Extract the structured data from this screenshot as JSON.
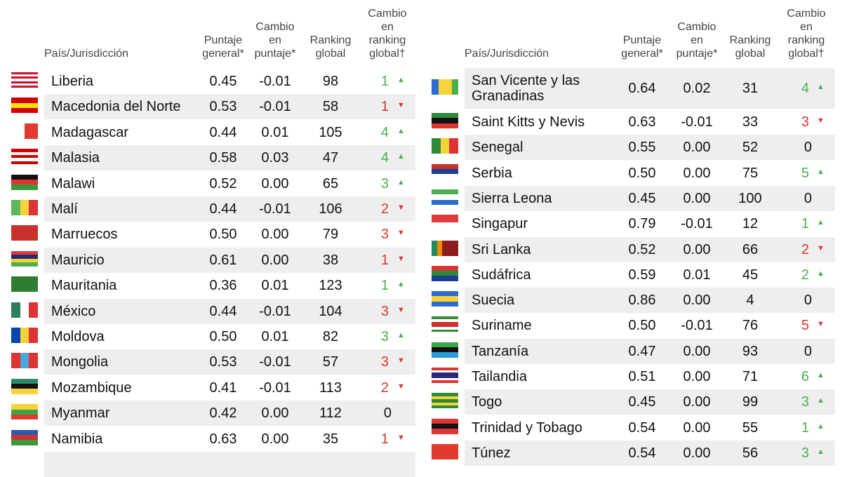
{
  "headers": {
    "country": "País/Jurisdicción",
    "score": [
      "Puntaje",
      "general*"
    ],
    "score_change": [
      "Cambio",
      "en",
      "puntaje*"
    ],
    "rank": [
      "Ranking",
      "global"
    ],
    "rank_change": [
      "Cambio",
      "en",
      "ranking",
      "global†"
    ]
  },
  "colors": {
    "up": "#4caf50",
    "down": "#d63a2f",
    "stripe": "#eeeeee"
  },
  "left_rows": [
    {
      "country": "Liberia",
      "flag": "flag-liberia-icon",
      "score": "0.45",
      "score_change": "-0.01",
      "rank": "98",
      "rank_change": "1",
      "dir": "up"
    },
    {
      "country": "Macedonia del Norte",
      "flag": "flag-north-macedonia-icon",
      "score": "0.53",
      "score_change": "-0.01",
      "rank": "58",
      "rank_change": "1",
      "dir": "down"
    },
    {
      "country": "Madagascar",
      "flag": "flag-madagascar-icon",
      "score": "0.44",
      "score_change": "0.01",
      "rank": "105",
      "rank_change": "4",
      "dir": "up"
    },
    {
      "country": "Malasia",
      "flag": "flag-malaysia-icon",
      "score": "0.58",
      "score_change": "0.03",
      "rank": "47",
      "rank_change": "4",
      "dir": "up"
    },
    {
      "country": "Malawi",
      "flag": "flag-malawi-icon",
      "score": "0.52",
      "score_change": "0.00",
      "rank": "65",
      "rank_change": "3",
      "dir": "up"
    },
    {
      "country": "Malí",
      "flag": "flag-mali-icon",
      "score": "0.44",
      "score_change": "-0.01",
      "rank": "106",
      "rank_change": "2",
      "dir": "down"
    },
    {
      "country": "Marruecos",
      "flag": "flag-morocco-icon",
      "score": "0.50",
      "score_change": "0.00",
      "rank": "79",
      "rank_change": "3",
      "dir": "down"
    },
    {
      "country": "Mauricio",
      "flag": "flag-mauritius-icon",
      "score": "0.61",
      "score_change": "0.00",
      "rank": "38",
      "rank_change": "1",
      "dir": "down"
    },
    {
      "country": "Mauritania",
      "flag": "flag-mauritania-icon",
      "score": "0.36",
      "score_change": "0.01",
      "rank": "123",
      "rank_change": "1",
      "dir": "up"
    },
    {
      "country": "México",
      "flag": "flag-mexico-icon",
      "score": "0.44",
      "score_change": "-0.01",
      "rank": "104",
      "rank_change": "3",
      "dir": "down"
    },
    {
      "country": "Moldova",
      "flag": "flag-moldova-icon",
      "score": "0.50",
      "score_change": "0.01",
      "rank": "82",
      "rank_change": "3",
      "dir": "up"
    },
    {
      "country": "Mongolia",
      "flag": "flag-mongolia-icon",
      "score": "0.53",
      "score_change": "-0.01",
      "rank": "57",
      "rank_change": "3",
      "dir": "down"
    },
    {
      "country": "Mozambique",
      "flag": "flag-mozambique-icon",
      "score": "0.41",
      "score_change": "-0.01",
      "rank": "113",
      "rank_change": "2",
      "dir": "down"
    },
    {
      "country": "Myanmar",
      "flag": "flag-myanmar-icon",
      "score": "0.42",
      "score_change": "0.00",
      "rank": "112",
      "rank_change": "0",
      "dir": "none"
    },
    {
      "country": "Namibia",
      "flag": "flag-namibia-icon",
      "score": "0.63",
      "score_change": "0.00",
      "rank": "35",
      "rank_change": "1",
      "dir": "down"
    }
  ],
  "right_rows": [
    {
      "country": "San Vicente y las Granadinas",
      "flag": "flag-saint-vincent-icon",
      "score": "0.64",
      "score_change": "0.02",
      "rank": "31",
      "rank_change": "4",
      "dir": "up"
    },
    {
      "country": "Saint Kitts y Nevis",
      "flag": "flag-saint-kitts-icon",
      "score": "0.63",
      "score_change": "-0.01",
      "rank": "33",
      "rank_change": "3",
      "dir": "down"
    },
    {
      "country": "Senegal",
      "flag": "flag-senegal-icon",
      "score": "0.55",
      "score_change": "0.00",
      "rank": "52",
      "rank_change": "0",
      "dir": "none"
    },
    {
      "country": "Serbia",
      "flag": "flag-serbia-icon",
      "score": "0.50",
      "score_change": "0.00",
      "rank": "75",
      "rank_change": "5",
      "dir": "up"
    },
    {
      "country": "Sierra Leona",
      "flag": "flag-sierra-leone-icon",
      "score": "0.45",
      "score_change": "0.00",
      "rank": "100",
      "rank_change": "0",
      "dir": "none"
    },
    {
      "country": "Singapur",
      "flag": "flag-singapore-icon",
      "score": "0.79",
      "score_change": "-0.01",
      "rank": "12",
      "rank_change": "1",
      "dir": "up"
    },
    {
      "country": "Sri Lanka",
      "flag": "flag-sri-lanka-icon",
      "score": "0.52",
      "score_change": "0.00",
      "rank": "66",
      "rank_change": "2",
      "dir": "down"
    },
    {
      "country": "Sudáfrica",
      "flag": "flag-south-africa-icon",
      "score": "0.59",
      "score_change": "0.01",
      "rank": "45",
      "rank_change": "2",
      "dir": "up"
    },
    {
      "country": "Suecia",
      "flag": "flag-sweden-icon",
      "score": "0.86",
      "score_change": "0.00",
      "rank": "4",
      "rank_change": "0",
      "dir": "none"
    },
    {
      "country": "Suriname",
      "flag": "flag-suriname-icon",
      "score": "0.50",
      "score_change": "-0.01",
      "rank": "76",
      "rank_change": "5",
      "dir": "down"
    },
    {
      "country": "Tanzanía",
      "flag": "flag-tanzania-icon",
      "score": "0.47",
      "score_change": "0.00",
      "rank": "93",
      "rank_change": "0",
      "dir": "none"
    },
    {
      "country": "Tailandia",
      "flag": "flag-thailand-icon",
      "score": "0.51",
      "score_change": "0.00",
      "rank": "71",
      "rank_change": "6",
      "dir": "up"
    },
    {
      "country": "Togo",
      "flag": "flag-togo-icon",
      "score": "0.45",
      "score_change": "0.00",
      "rank": "99",
      "rank_change": "3",
      "dir": "up"
    },
    {
      "country": "Trinidad y Tobago",
      "flag": "flag-trinidad-tobago-icon",
      "score": "0.54",
      "score_change": "0.00",
      "rank": "55",
      "rank_change": "1",
      "dir": "up"
    },
    {
      "country": "Túnez",
      "flag": "flag-tunisia-icon",
      "score": "0.54",
      "score_change": "0.00",
      "rank": "56",
      "rank_change": "3",
      "dir": "up"
    }
  ]
}
